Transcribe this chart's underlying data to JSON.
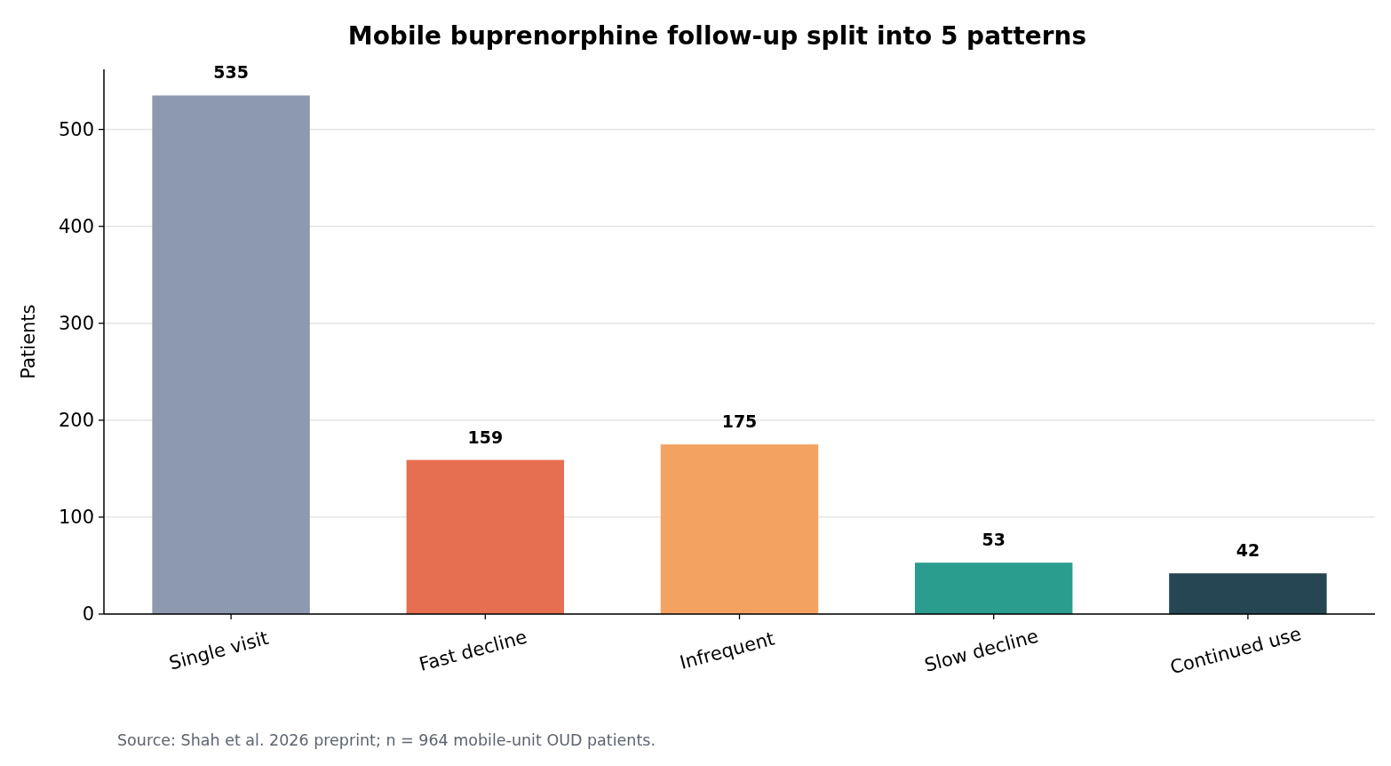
{
  "chart_data": {
    "type": "bar",
    "title": "Mobile buprenorphine follow-up split into 5 patterns",
    "ylabel": "Patients",
    "categories": [
      "Single visit",
      "Fast decline",
      "Infrequent",
      "Slow decline",
      "Continued use"
    ],
    "values": [
      535,
      159,
      175,
      53,
      42
    ],
    "colors": [
      "#8d99ae",
      "#e76f51",
      "#f4a261",
      "#2a9d8f",
      "#264653"
    ],
    "ylim": [
      0,
      562
    ],
    "yticks": [
      0,
      100,
      200,
      300,
      400,
      500
    ],
    "grid": "y",
    "data_labels": true,
    "annotations": [
      "Source: Shah et al. 2026 preprint; n = 964 mobile-unit OUD patients."
    ]
  }
}
